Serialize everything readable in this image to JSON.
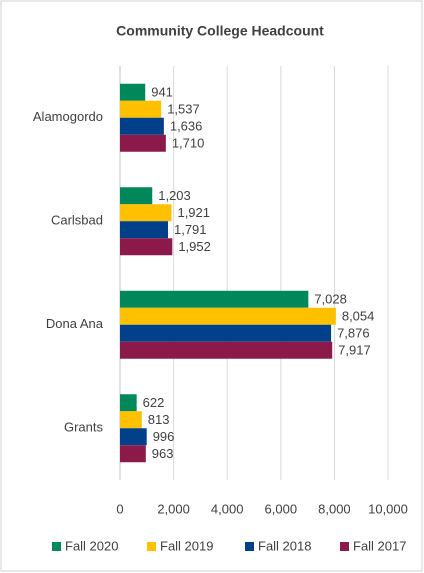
{
  "chart_data": {
    "type": "bar",
    "orientation": "horizontal",
    "title": "Community College Headcount",
    "categories": [
      "Alamogordo",
      "Carlsbad",
      "Dona Ana",
      "Grants"
    ],
    "series": [
      {
        "name": "Fall 2020",
        "color": "#00875a",
        "values": [
          941,
          1203,
          7028,
          622
        ],
        "value_labels": [
          "941",
          "1,203",
          "7,028",
          "622"
        ]
      },
      {
        "name": "Fall 2019",
        "color": "#ffc000",
        "values": [
          1537,
          1921,
          8054,
          813
        ],
        "value_labels": [
          "1,537",
          "1,921",
          "8,054",
          "813"
        ]
      },
      {
        "name": "Fall 2018",
        "color": "#003f8a",
        "values": [
          1636,
          1791,
          7876,
          996
        ],
        "value_labels": [
          "1,636",
          "1,791",
          "7,876",
          "996"
        ]
      },
      {
        "name": "Fall 2017",
        "color": "#8b1a4a",
        "values": [
          1710,
          1952,
          7917,
          963
        ],
        "value_labels": [
          "1,710",
          "1,952",
          "7,917",
          "963"
        ]
      }
    ],
    "xlim": [
      0,
      10000
    ],
    "xticks": [
      0,
      {
        "value": 2000,
        "label": "2,000"
      },
      {
        "value": 4000,
        "label": "4,000"
      },
      {
        "value": 6000,
        "label": "6,000"
      },
      {
        "value": 8000,
        "label": "8,000"
      },
      {
        "value": 10000,
        "label": "10,000"
      }
    ],
    "grid": true,
    "legend": "bottom"
  }
}
